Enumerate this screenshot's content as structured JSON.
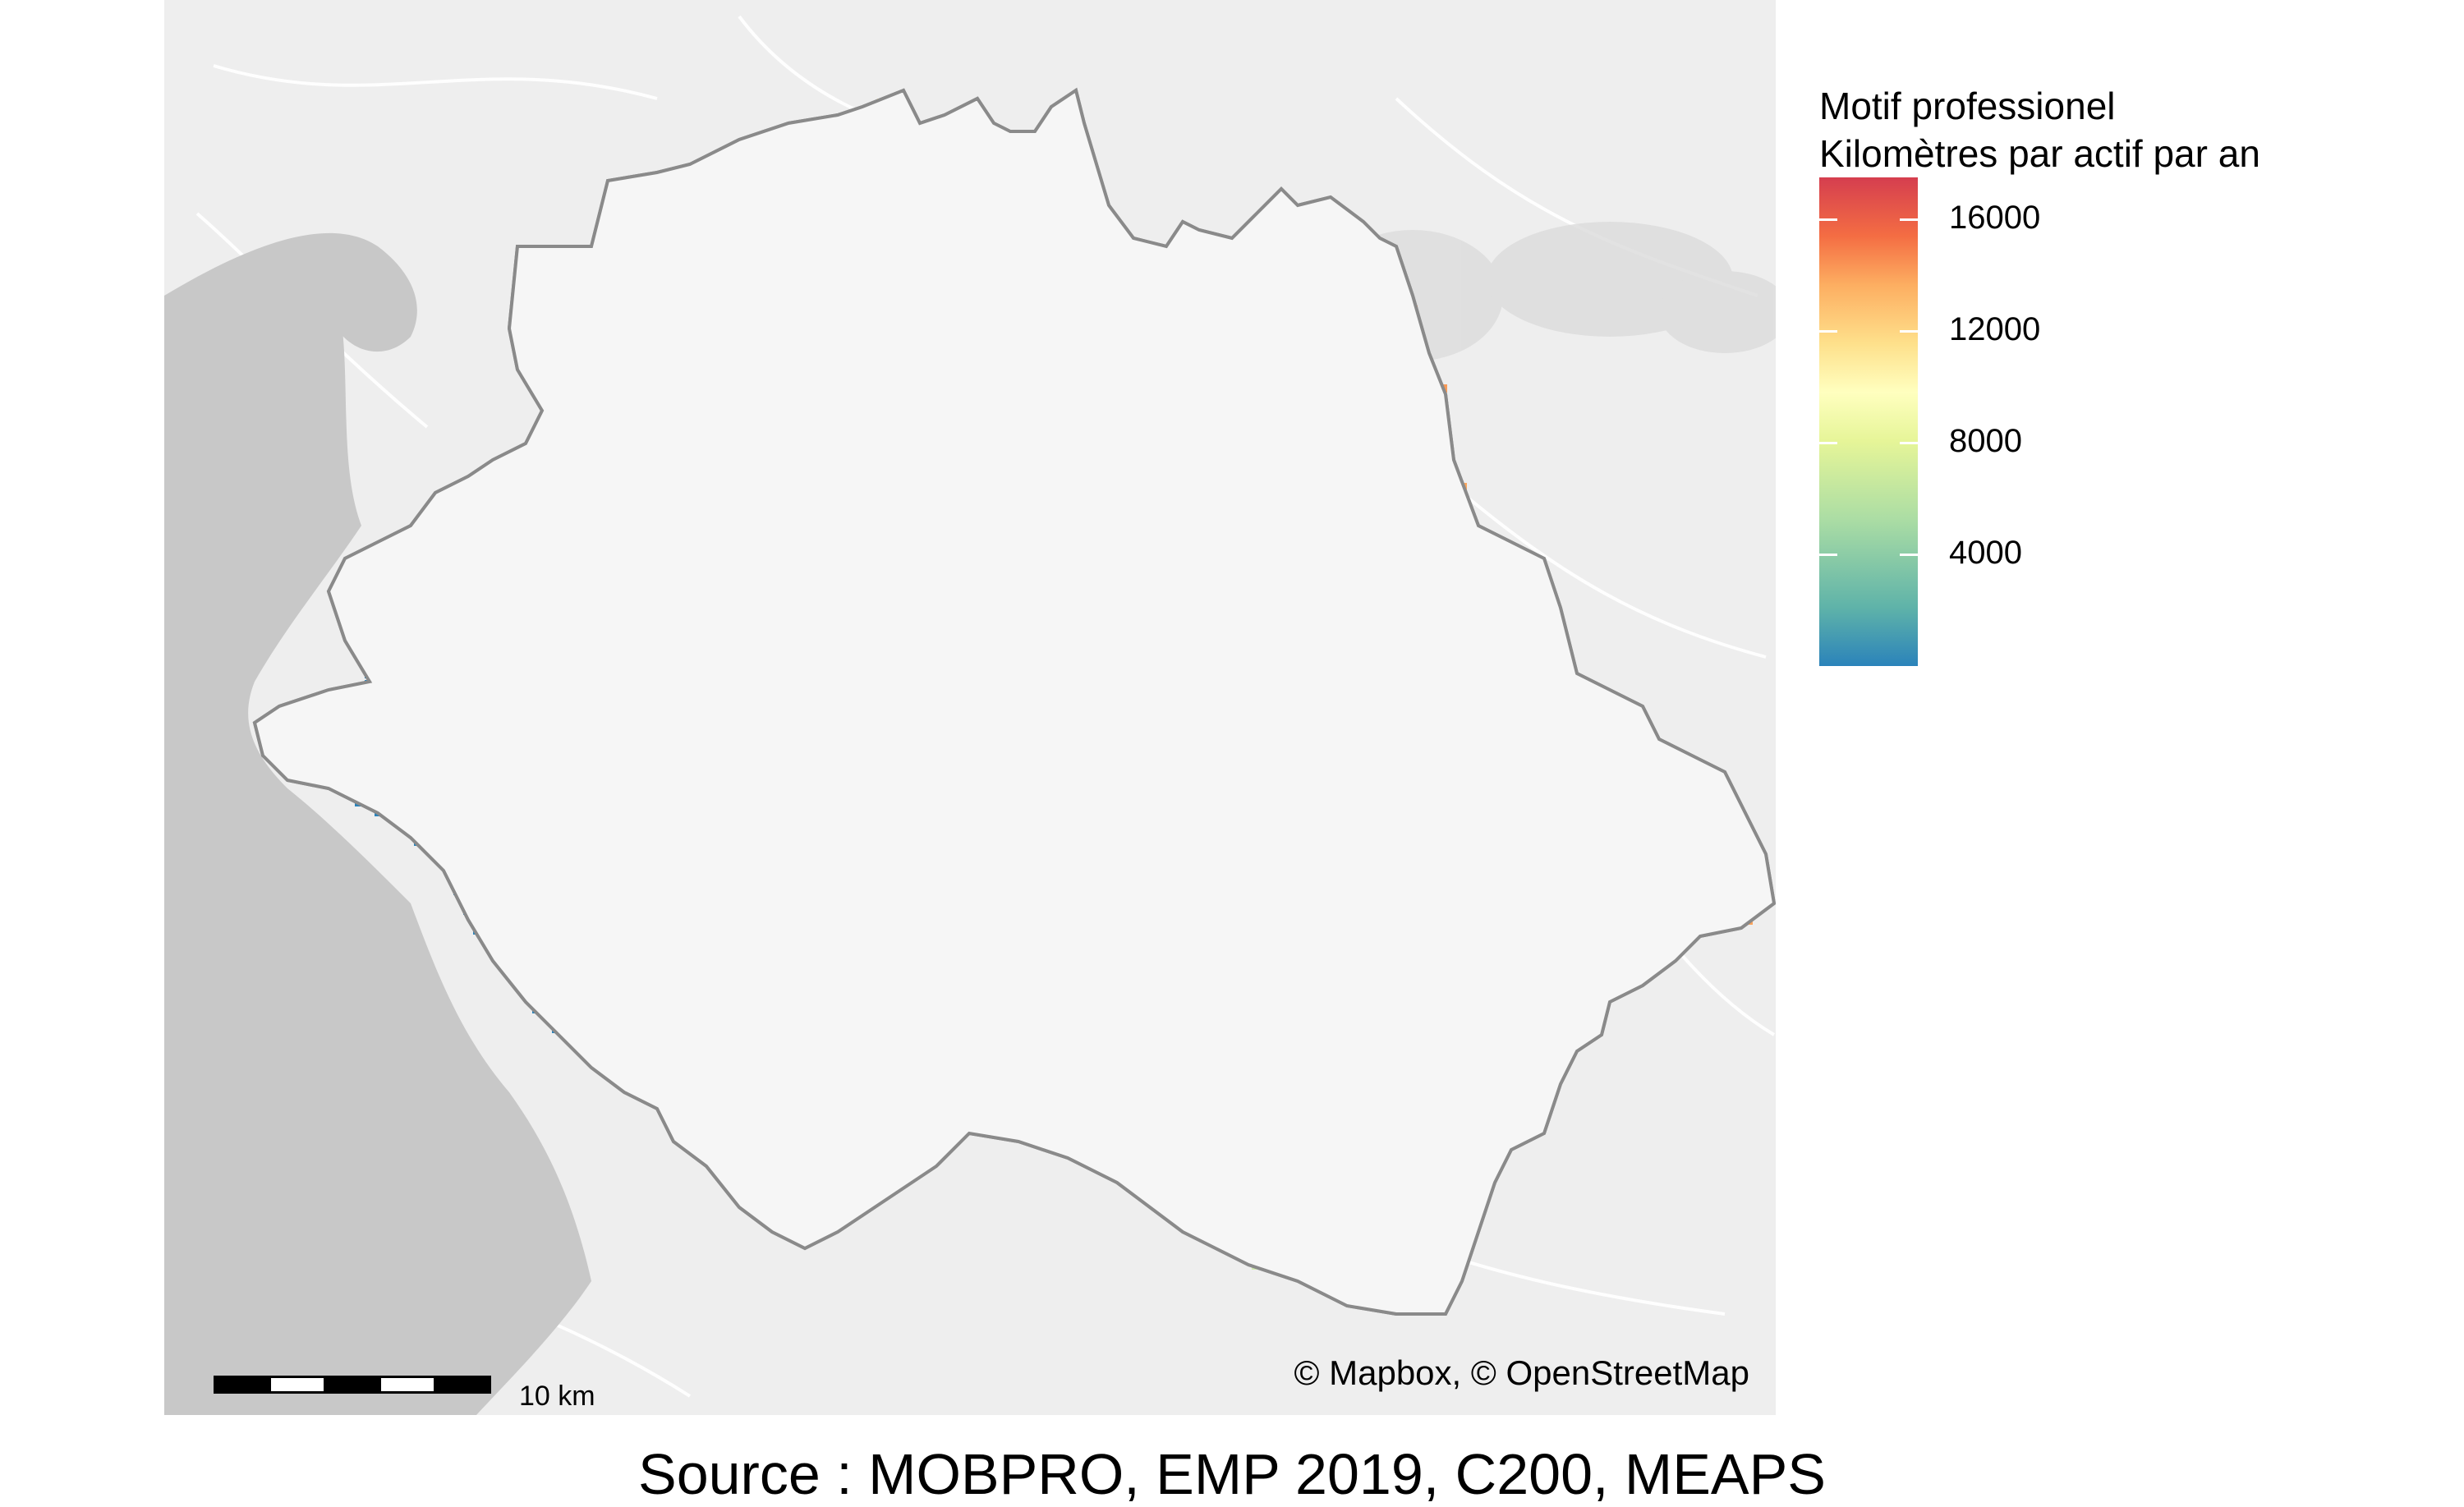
{
  "legend": {
    "title_line1": "Motif professionel",
    "title_line2": "Kilomètres par actif par an",
    "range": [
      0,
      17500
    ],
    "ticks": [
      {
        "label": "16000",
        "value": 16000
      },
      {
        "label": "12000",
        "value": 12000
      },
      {
        "label": "8000",
        "value": 8000
      },
      {
        "label": "4000",
        "value": 4000
      }
    ],
    "palette": [
      "#2b83ba",
      "#abdda4",
      "#ffffbf",
      "#fdae61",
      "#d7191c"
    ]
  },
  "scale": {
    "label": "10 km"
  },
  "attribution": "© Mapbox, © OpenStreetMap",
  "source": "Source : MOBPRO, EMP 2019, C200, MEAPS",
  "colors": {
    "background_map": "#eeeeee",
    "water": "#c8c8c8",
    "land_inside": "#f6f6f6",
    "boundary": "#8a8a8a"
  }
}
